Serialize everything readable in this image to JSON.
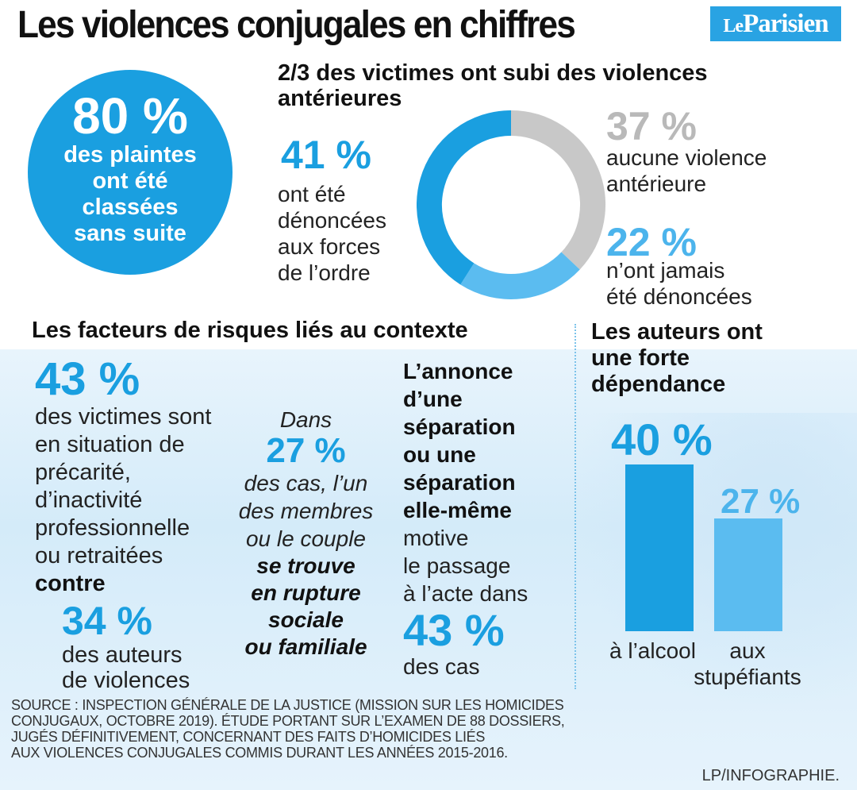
{
  "header": {
    "title": "Les violences conjugales en chiffres",
    "logo_text_le": "Le",
    "logo_text": "Parisien"
  },
  "circle": {
    "value": "80 %",
    "lines": [
      "des plaintes",
      "ont été",
      "classées",
      "sans suite"
    ]
  },
  "donut_section": {
    "heading_line1": "2/3 des victimes ont subi des violences",
    "heading_line2": "antérieures",
    "left_pct": "41 %",
    "left_lines": [
      "ont été",
      "dénoncées",
      "aux forces",
      "de l’ordre"
    ],
    "right_top_pct": "37 %",
    "right_top_lines": [
      "aucune violence",
      "antérieure"
    ],
    "right_bottom_pct": "22 %",
    "right_bottom_lines": [
      "n’ont jamais",
      "été dénoncées"
    ]
  },
  "risk_section": {
    "heading": "Les facteurs de risques liés au contexte",
    "col1_pct": "43 %",
    "col1_lines": [
      "des victimes sont",
      "en situation de",
      "précarité,",
      "d’inactivité",
      "professionnelle",
      "ou retraitées"
    ],
    "col1_bold": "contre",
    "col1_pct2": "34 %",
    "col1_lines2": [
      "des auteurs",
      "de violences"
    ],
    "col2_top": "Dans",
    "col2_pct": "27 %",
    "col2_lines": [
      "des cas, l’un",
      "des membres",
      "ou le couple"
    ],
    "col2_bold_lines": [
      "se trouve",
      "en rupture",
      "sociale",
      "ou familiale"
    ],
    "col3_bold_lines": [
      "L’annonce",
      "d’une",
      "séparation",
      "ou une",
      "séparation",
      "elle-même"
    ],
    "col3_lines": [
      "motive",
      "le passage",
      "à l’acte dans"
    ],
    "col3_pct": "43 %",
    "col3_tail": "des cas"
  },
  "dependance_section": {
    "heading_lines": [
      "Les auteurs ont",
      "une forte",
      "dépendance"
    ]
  },
  "footer": {
    "source_lines": [
      "SOURCE : INSPECTION GÉNÉRALE DE LA JUSTICE (MISSION SUR LES HOMICIDES",
      "CONJUGAUX, OCTOBRE 2019). ÉTUDE PORTANT SUR L’EXAMEN DE 88 DOSSIERS,",
      "JUGÉS DÉFINITIVEMENT, CONCERNANT DES FAITS D’HOMICIDES LIÉS",
      "AUX VIOLENCES CONJUGALES COMMIS DURANT LES ANNÉES 2015-2016."
    ],
    "credit": "LP/INFOGRAPHIE."
  },
  "chart_data": [
    {
      "type": "pie",
      "title": "2/3 des victimes ont subi des violences antérieures",
      "categories": [
        "ont été dénoncées aux forces de l’ordre",
        "aucune violence antérieure",
        "n’ont jamais été dénoncées"
      ],
      "values": [
        41,
        37,
        22
      ],
      "colors": [
        "#1a9fe0",
        "#c8c8c8",
        "#5bbcf0"
      ]
    },
    {
      "type": "bar",
      "title": "Les auteurs ont une forte dépendance",
      "categories": [
        "à l’alcool",
        "aux stupéfiants"
      ],
      "values": [
        40,
        27
      ],
      "value_labels": [
        "40 %",
        "27 %"
      ],
      "colors": [
        "#1a9fe0",
        "#5bbcf0"
      ]
    }
  ]
}
